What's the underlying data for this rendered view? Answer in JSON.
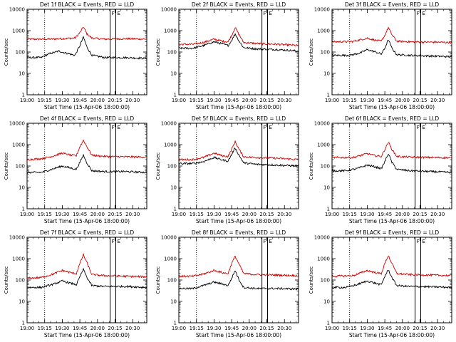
{
  "colors": {
    "events": "#000000",
    "lld": "#cc0000",
    "marker": "#000000",
    "axis": "#000000"
  },
  "chart_data": [
    {
      "type": "line",
      "title": "Det 1f BLACK = Events, RED = LLD",
      "xlabel": "Start Time (15-Apr-06 18:00:00)",
      "ylabel": "Counts/sec",
      "xticks": [
        "19:00",
        "19:15",
        "19:30",
        "19:45",
        "20:00",
        "20:15",
        "20:30"
      ],
      "yticks": [
        "1",
        "10",
        "100",
        "1000",
        "10000"
      ],
      "ylim": [
        1,
        10000
      ],
      "yscale": "log",
      "xlim_hours": [
        19.0,
        20.7
      ],
      "dotted_line_hours": 19.25,
      "solid_line_hours": [
        20.18,
        20.26
      ],
      "bracket_labels": [
        "F",
        "E"
      ],
      "series": [
        {
          "color_key": "lld",
          "x_hours": [
            19.0,
            19.3,
            19.5,
            19.68,
            19.75,
            19.8,
            19.85,
            19.92,
            20.1,
            20.4,
            20.7
          ],
          "values": [
            400,
            400,
            420,
            450,
            800,
            1500,
            700,
            450,
            400,
            420,
            400
          ]
        },
        {
          "color_key": "events",
          "x_hours": [
            19.0,
            19.2,
            19.3,
            19.45,
            19.55,
            19.68,
            19.75,
            19.8,
            19.85,
            19.92,
            20.1,
            20.4,
            20.7
          ],
          "values": [
            55,
            55,
            80,
            110,
            90,
            70,
            200,
            500,
            170,
            70,
            55,
            55,
            50
          ]
        }
      ]
    },
    {
      "type": "line",
      "title": "Det 2f BLACK = Events, RED = LLD",
      "xlabel": "Start Time (15-Apr-06 18:00:00)",
      "ylabel": "Counts/sec",
      "xticks": [
        "19:00",
        "19:15",
        "19:30",
        "19:45",
        "20:00",
        "20:15",
        "20:30"
      ],
      "yticks": [
        "1",
        "10",
        "100",
        "1000",
        "10000"
      ],
      "ylim": [
        1,
        10000
      ],
      "yscale": "log",
      "xlim_hours": [
        19.0,
        20.7
      ],
      "dotted_line_hours": 19.25,
      "solid_line_hours": [
        20.18,
        20.26
      ],
      "bracket_labels": [
        "F",
        "E"
      ],
      "series": [
        {
          "color_key": "lld",
          "x_hours": [
            19.0,
            19.2,
            19.35,
            19.5,
            19.62,
            19.7,
            19.75,
            19.8,
            19.85,
            19.92,
            20.1,
            20.4,
            20.7
          ],
          "values": [
            230,
            230,
            280,
            400,
            320,
            300,
            600,
            1400,
            700,
            280,
            250,
            230,
            200
          ]
        },
        {
          "color_key": "events",
          "x_hours": [
            19.0,
            19.2,
            19.35,
            19.5,
            19.62,
            19.7,
            19.75,
            19.8,
            19.85,
            19.92,
            20.1,
            20.4,
            20.7
          ],
          "values": [
            150,
            150,
            200,
            300,
            240,
            200,
            350,
            700,
            350,
            160,
            140,
            130,
            110
          ]
        }
      ]
    },
    {
      "type": "line",
      "title": "Det 3f BLACK = Events, RED = LLD",
      "xlabel": "Start Time (15-Apr-06 18:00:00)",
      "ylabel": "Counts/sec",
      "xticks": [
        "19:00",
        "19:15",
        "19:30",
        "19:45",
        "20:00",
        "20:15",
        "20:30"
      ],
      "yticks": [
        "1",
        "10",
        "100",
        "1000",
        "10000"
      ],
      "ylim": [
        1,
        10000
      ],
      "yscale": "log",
      "xlim_hours": [
        19.0,
        20.7
      ],
      "dotted_line_hours": 19.25,
      "solid_line_hours": [
        20.18,
        20.26
      ],
      "bracket_labels": [
        "F",
        "E"
      ],
      "series": [
        {
          "color_key": "lld",
          "x_hours": [
            19.0,
            19.3,
            19.5,
            19.62,
            19.7,
            19.75,
            19.8,
            19.85,
            19.92,
            20.1,
            20.4,
            20.7
          ],
          "values": [
            300,
            310,
            450,
            350,
            320,
            600,
            1400,
            650,
            320,
            300,
            290,
            280
          ]
        },
        {
          "color_key": "events",
          "x_hours": [
            19.0,
            19.25,
            19.4,
            19.5,
            19.62,
            19.7,
            19.75,
            19.8,
            19.85,
            19.92,
            20.1,
            20.4,
            20.7
          ],
          "values": [
            70,
            70,
            90,
            130,
            100,
            80,
            150,
            380,
            150,
            75,
            70,
            65,
            60
          ]
        }
      ]
    },
    {
      "type": "line",
      "title": "Det 4f BLACK = Events, RED = LLD",
      "xlabel": "Start Time (15-Apr-06 18:00:00)",
      "ylabel": "Counts/sec",
      "xticks": [
        "19:00",
        "19:15",
        "19:30",
        "19:45",
        "20:00",
        "20:15",
        "20:30"
      ],
      "yticks": [
        "1",
        "10",
        "100",
        "1000",
        "10000"
      ],
      "ylim": [
        1,
        10000
      ],
      "yscale": "log",
      "xlim_hours": [
        19.0,
        20.7
      ],
      "dotted_line_hours": 19.25,
      "solid_line_hours": [
        20.18,
        20.26
      ],
      "bracket_labels": [
        "F",
        "E"
      ],
      "series": [
        {
          "color_key": "lld",
          "x_hours": [
            19.0,
            19.2,
            19.35,
            19.5,
            19.62,
            19.7,
            19.75,
            19.8,
            19.85,
            19.92,
            20.1,
            20.4,
            20.7
          ],
          "values": [
            200,
            220,
            280,
            400,
            320,
            300,
            800,
            1600,
            800,
            320,
            280,
            270,
            260
          ]
        },
        {
          "color_key": "events",
          "x_hours": [
            19.0,
            19.2,
            19.35,
            19.5,
            19.62,
            19.7,
            19.75,
            19.8,
            19.85,
            19.92,
            20.1,
            20.4,
            20.7
          ],
          "values": [
            50,
            50,
            70,
            100,
            80,
            70,
            150,
            320,
            140,
            60,
            55,
            55,
            50
          ]
        }
      ]
    },
    {
      "type": "line",
      "title": "Det 5f BLACK = Events, RED = LLD",
      "xlabel": "Start Time (15-Apr-06 18:00:00)",
      "ylabel": "Counts/sec",
      "xticks": [
        "19:00",
        "19:15",
        "19:30",
        "19:45",
        "20:00",
        "20:15",
        "20:30"
      ],
      "yticks": [
        "1",
        "10",
        "100",
        "1000",
        "10000"
      ],
      "ylim": [
        1,
        10000
      ],
      "yscale": "log",
      "xlim_hours": [
        19.0,
        20.7
      ],
      "dotted_line_hours": 19.25,
      "solid_line_hours": [
        20.18,
        20.26
      ],
      "bracket_labels": [
        "F",
        "E"
      ],
      "series": [
        {
          "color_key": "lld",
          "x_hours": [
            19.0,
            19.2,
            19.35,
            19.5,
            19.62,
            19.7,
            19.75,
            19.8,
            19.85,
            19.92,
            20.1,
            20.4,
            20.7
          ],
          "values": [
            200,
            200,
            250,
            400,
            300,
            280,
            600,
            1400,
            650,
            270,
            250,
            230,
            200
          ]
        },
        {
          "color_key": "events",
          "x_hours": [
            19.0,
            19.2,
            19.35,
            19.5,
            19.62,
            19.7,
            19.75,
            19.8,
            19.85,
            19.92,
            20.1,
            20.4,
            20.7
          ],
          "values": [
            130,
            130,
            160,
            250,
            190,
            170,
            350,
            700,
            340,
            140,
            120,
            110,
            100
          ]
        }
      ]
    },
    {
      "type": "line",
      "title": "Det 6f BLACK = Events, RED = LLD",
      "xlabel": "Start Time (15-Apr-06 18:00:00)",
      "ylabel": "Counts/sec",
      "xticks": [
        "19:00",
        "19:15",
        "19:30",
        "19:45",
        "20:00",
        "20:15",
        "20:30"
      ],
      "yticks": [
        "1",
        "10",
        "100",
        "1000",
        "10000"
      ],
      "ylim": [
        1,
        10000
      ],
      "yscale": "log",
      "xlim_hours": [
        19.0,
        20.7
      ],
      "dotted_line_hours": 19.25,
      "solid_line_hours": [
        20.18,
        20.26
      ],
      "bracket_labels": [
        "F",
        "E"
      ],
      "series": [
        {
          "color_key": "lld",
          "x_hours": [
            19.0,
            19.3,
            19.5,
            19.62,
            19.7,
            19.75,
            19.8,
            19.85,
            19.92,
            20.1,
            20.4,
            20.7
          ],
          "values": [
            250,
            250,
            380,
            300,
            280,
            600,
            1300,
            600,
            280,
            260,
            250,
            240
          ]
        },
        {
          "color_key": "events",
          "x_hours": [
            19.0,
            19.2,
            19.35,
            19.5,
            19.62,
            19.7,
            19.75,
            19.8,
            19.85,
            19.92,
            20.1,
            20.4,
            20.7
          ],
          "values": [
            60,
            60,
            75,
            110,
            90,
            75,
            160,
            380,
            150,
            70,
            60,
            55,
            50
          ]
        }
      ]
    },
    {
      "type": "line",
      "title": "Det 7f BLACK = Events, RED = LLD",
      "xlabel": "Start Time (15-Apr-06 18:00:00)",
      "ylabel": "Counts/sec",
      "xticks": [
        "19:00",
        "19:15",
        "19:30",
        "19:45",
        "20:00",
        "20:15",
        "20:30"
      ],
      "yticks": [
        "1",
        "10",
        "100",
        "1000",
        "10000"
      ],
      "ylim": [
        1,
        10000
      ],
      "yscale": "log",
      "xlim_hours": [
        19.0,
        20.7
      ],
      "dotted_line_hours": 19.25,
      "solid_line_hours": [
        20.18,
        20.26
      ],
      "bracket_labels": [
        "F",
        "E"
      ],
      "series": [
        {
          "color_key": "lld",
          "x_hours": [
            19.0,
            19.2,
            19.35,
            19.5,
            19.62,
            19.7,
            19.75,
            19.8,
            19.85,
            19.92,
            20.1,
            20.4,
            20.7
          ],
          "values": [
            120,
            130,
            180,
            280,
            220,
            200,
            600,
            1500,
            650,
            180,
            160,
            150,
            140
          ]
        },
        {
          "color_key": "events",
          "x_hours": [
            19.0,
            19.2,
            19.35,
            19.5,
            19.62,
            19.7,
            19.75,
            19.8,
            19.85,
            19.92,
            20.1,
            20.4,
            20.7
          ],
          "values": [
            45,
            45,
            60,
            90,
            70,
            60,
            140,
            320,
            130,
            55,
            50,
            50,
            45
          ]
        }
      ]
    },
    {
      "type": "line",
      "title": "Det 8f BLACK = Events, RED = LLD",
      "xlabel": "Start Time (15-Apr-06 18:00:00)",
      "ylabel": "Counts/sec",
      "xticks": [
        "19:00",
        "19:15",
        "19:30",
        "19:45",
        "20:00",
        "20:15",
        "20:30"
      ],
      "yticks": [
        "1",
        "10",
        "100",
        "1000",
        "10000"
      ],
      "ylim": [
        1,
        10000
      ],
      "yscale": "log",
      "xlim_hours": [
        19.0,
        20.7
      ],
      "dotted_line_hours": 19.25,
      "solid_line_hours": [
        20.18,
        20.26
      ],
      "bracket_labels": [
        "F",
        "E"
      ],
      "series": [
        {
          "color_key": "lld",
          "x_hours": [
            19.0,
            19.2,
            19.35,
            19.5,
            19.62,
            19.7,
            19.75,
            19.8,
            19.85,
            19.92,
            20.1,
            20.4,
            20.7
          ],
          "values": [
            150,
            150,
            190,
            280,
            220,
            200,
            600,
            1300,
            600,
            200,
            180,
            170,
            160
          ]
        },
        {
          "color_key": "events",
          "x_hours": [
            19.0,
            19.2,
            19.35,
            19.5,
            19.62,
            19.7,
            19.75,
            19.8,
            19.85,
            19.92,
            20.1,
            20.4,
            20.7
          ],
          "values": [
            40,
            40,
            55,
            80,
            65,
            55,
            120,
            280,
            110,
            45,
            40,
            40,
            38
          ]
        }
      ]
    },
    {
      "type": "line",
      "title": "Det 9f BLACK = Events, RED = LLD",
      "xlabel": "Start Time (15-Apr-06 18:00:00)",
      "ylabel": "Counts/sec",
      "xticks": [
        "19:00",
        "19:15",
        "19:30",
        "19:45",
        "20:00",
        "20:15",
        "20:30"
      ],
      "yticks": [
        "1",
        "10",
        "100",
        "1000",
        "10000"
      ],
      "ylim": [
        1,
        10000
      ],
      "yscale": "log",
      "xlim_hours": [
        19.0,
        20.7
      ],
      "dotted_line_hours": 19.25,
      "solid_line_hours": [
        20.18,
        20.26
      ],
      "bracket_labels": [
        "F",
        "E"
      ],
      "series": [
        {
          "color_key": "lld",
          "x_hours": [
            19.0,
            19.3,
            19.5,
            19.62,
            19.7,
            19.75,
            19.8,
            19.85,
            19.92,
            20.1,
            20.4,
            20.7
          ],
          "values": [
            150,
            160,
            280,
            220,
            200,
            600,
            1400,
            600,
            200,
            180,
            170,
            160
          ]
        },
        {
          "color_key": "events",
          "x_hours": [
            19.0,
            19.2,
            19.35,
            19.5,
            19.62,
            19.7,
            19.75,
            19.8,
            19.85,
            19.92,
            20.1,
            20.4,
            20.7
          ],
          "values": [
            45,
            45,
            60,
            90,
            70,
            60,
            150,
            300,
            130,
            55,
            50,
            48,
            45
          ]
        }
      ]
    }
  ]
}
